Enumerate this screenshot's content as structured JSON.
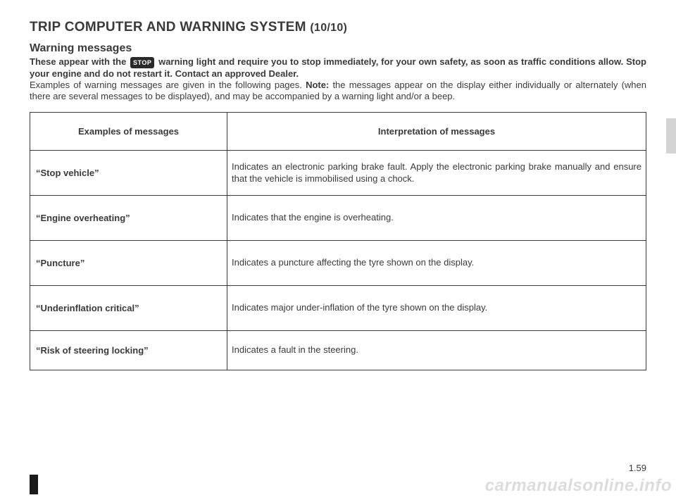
{
  "title_main": "TRIP COMPUTER AND WARNING SYSTEM",
  "title_sub": "(10/10)",
  "warning_heading": "Warning messages",
  "intro_bold_1": "These appear with the ",
  "stop_icon_label": "STOP",
  "intro_bold_2": " warning light and require you to stop immediately, for your own safety, as soon as traffic conditions allow. Stop your engine and do not restart it. Contact an approved Dealer.",
  "intro_plain_1": "Examples of warning messages are given in the following pages. ",
  "intro_note_label": "Note:",
  "intro_plain_2": " the messages appear on the display either individually or alternately (when there are several messages to be displayed), and may be accompanied by a warning light and/or a beep.",
  "table": {
    "col1": "Examples of messages",
    "col2": "Interpretation of messages",
    "rows": [
      {
        "msg": "“Stop vehicle”",
        "interp": "Indicates an electronic parking brake fault. Apply the electronic parking brake manually and ensure that the vehicle is immobilised using a chock.",
        "justify": true
      },
      {
        "msg": "“Engine overheating”",
        "interp": "Indicates that the engine is overheating.",
        "justify": false
      },
      {
        "msg": "“Puncture”",
        "interp": "Indicates a puncture affecting the tyre shown on the display.",
        "justify": false
      },
      {
        "msg": "“Underinflation critical”",
        "interp": "Indicates major under-inflation of the tyre shown on the display.",
        "justify": false
      },
      {
        "msg": "“Risk of steering locking”",
        "interp": "Indicates a fault in the steering.",
        "justify": false
      }
    ]
  },
  "page_number": "1.59",
  "watermark": "carmanualsonline.info"
}
